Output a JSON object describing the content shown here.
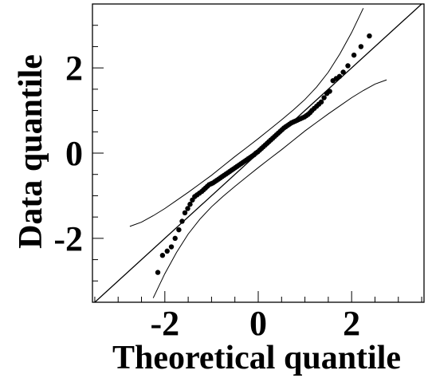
{
  "chart_data": {
    "type": "scatter",
    "title": "",
    "xlabel": "Theoretical quantile",
    "ylabel": "Data quantile",
    "xlim": [
      -3.55,
      3.55
    ],
    "ylim": [
      -3.5,
      3.5
    ],
    "grid": false,
    "legend": "none",
    "x_ticks_major": [
      -2,
      0,
      2
    ],
    "y_ticks_major": [
      -2,
      0,
      2
    ],
    "x_tick_labels": [
      "-2",
      "0",
      "2"
    ],
    "y_tick_labels": [
      "-2",
      "0",
      "2"
    ],
    "minor_tick_step": 0.5,
    "reference_line": {
      "intercept": 0,
      "slope": 1
    },
    "envelope": {
      "x": [
        -2.75,
        -2.5,
        -2.25,
        -2.0,
        -1.75,
        -1.5,
        -1.25,
        -1.0,
        -0.75,
        -0.5,
        -0.25,
        0.0,
        0.25,
        0.5,
        0.75,
        1.0,
        1.25,
        1.5,
        1.75,
        2.0,
        2.25,
        2.5,
        2.75
      ],
      "upper": [
        -1.72,
        -1.62,
        -1.47,
        -1.3,
        -1.11,
        -0.92,
        -0.72,
        -0.52,
        -0.3,
        -0.08,
        0.13,
        0.34,
        0.56,
        0.78,
        1.01,
        1.26,
        1.55,
        1.9,
        2.33,
        2.83,
        3.4,
        null,
        null
      ],
      "lower": [
        null,
        null,
        -3.4,
        -2.83,
        -2.33,
        -1.9,
        -1.55,
        -1.26,
        -1.01,
        -0.78,
        -0.56,
        -0.34,
        -0.13,
        0.08,
        0.3,
        0.52,
        0.72,
        0.92,
        1.11,
        1.3,
        1.47,
        1.62,
        1.72
      ]
    },
    "points": {
      "x": [
        -2.15,
        -2.05,
        -1.95,
        -1.86,
        -1.78,
        -1.7,
        -1.63,
        -1.57,
        -1.51,
        -1.46,
        -1.41,
        -1.36,
        -1.31,
        -1.26,
        -1.21,
        -1.17,
        -1.13,
        -1.09,
        -1.05,
        -1.01,
        -0.97,
        -0.93,
        -0.89,
        -0.85,
        -0.81,
        -0.77,
        -0.73,
        -0.69,
        -0.65,
        -0.61,
        -0.57,
        -0.53,
        -0.49,
        -0.45,
        -0.41,
        -0.37,
        -0.33,
        -0.29,
        -0.25,
        -0.21,
        -0.17,
        -0.13,
        -0.09,
        -0.05,
        -0.01,
        0.03,
        0.07,
        0.11,
        0.15,
        0.19,
        0.23,
        0.27,
        0.31,
        0.35,
        0.39,
        0.43,
        0.47,
        0.51,
        0.55,
        0.59,
        0.63,
        0.67,
        0.71,
        0.75,
        0.79,
        0.83,
        0.87,
        0.91,
        0.95,
        0.99,
        1.03,
        1.07,
        1.11,
        1.15,
        1.2,
        1.25,
        1.3,
        1.35,
        1.41,
        1.47,
        1.53,
        1.6,
        1.67,
        1.74,
        1.82,
        1.92,
        2.05,
        2.2,
        2.38
      ],
      "y": [
        -2.8,
        -2.4,
        -2.3,
        -2.2,
        -2.0,
        -1.8,
        -1.6,
        -1.4,
        -1.3,
        -1.2,
        -1.1,
        -1.02,
        -0.98,
        -0.94,
        -0.9,
        -0.86,
        -0.82,
        -0.78,
        -0.74,
        -0.72,
        -0.7,
        -0.67,
        -0.64,
        -0.61,
        -0.58,
        -0.55,
        -0.52,
        -0.49,
        -0.46,
        -0.43,
        -0.4,
        -0.37,
        -0.34,
        -0.31,
        -0.28,
        -0.25,
        -0.22,
        -0.19,
        -0.16,
        -0.13,
        -0.1,
        -0.07,
        -0.04,
        0.0,
        0.03,
        0.07,
        0.11,
        0.15,
        0.19,
        0.23,
        0.27,
        0.31,
        0.35,
        0.39,
        0.43,
        0.47,
        0.51,
        0.55,
        0.59,
        0.62,
        0.65,
        0.68,
        0.71,
        0.73,
        0.75,
        0.77,
        0.79,
        0.81,
        0.83,
        0.85,
        0.88,
        0.91,
        0.95,
        1.0,
        1.05,
        1.1,
        1.15,
        1.2,
        1.3,
        1.4,
        1.45,
        1.7,
        1.75,
        1.8,
        1.9,
        2.05,
        2.3,
        2.5,
        2.75
      ]
    }
  }
}
